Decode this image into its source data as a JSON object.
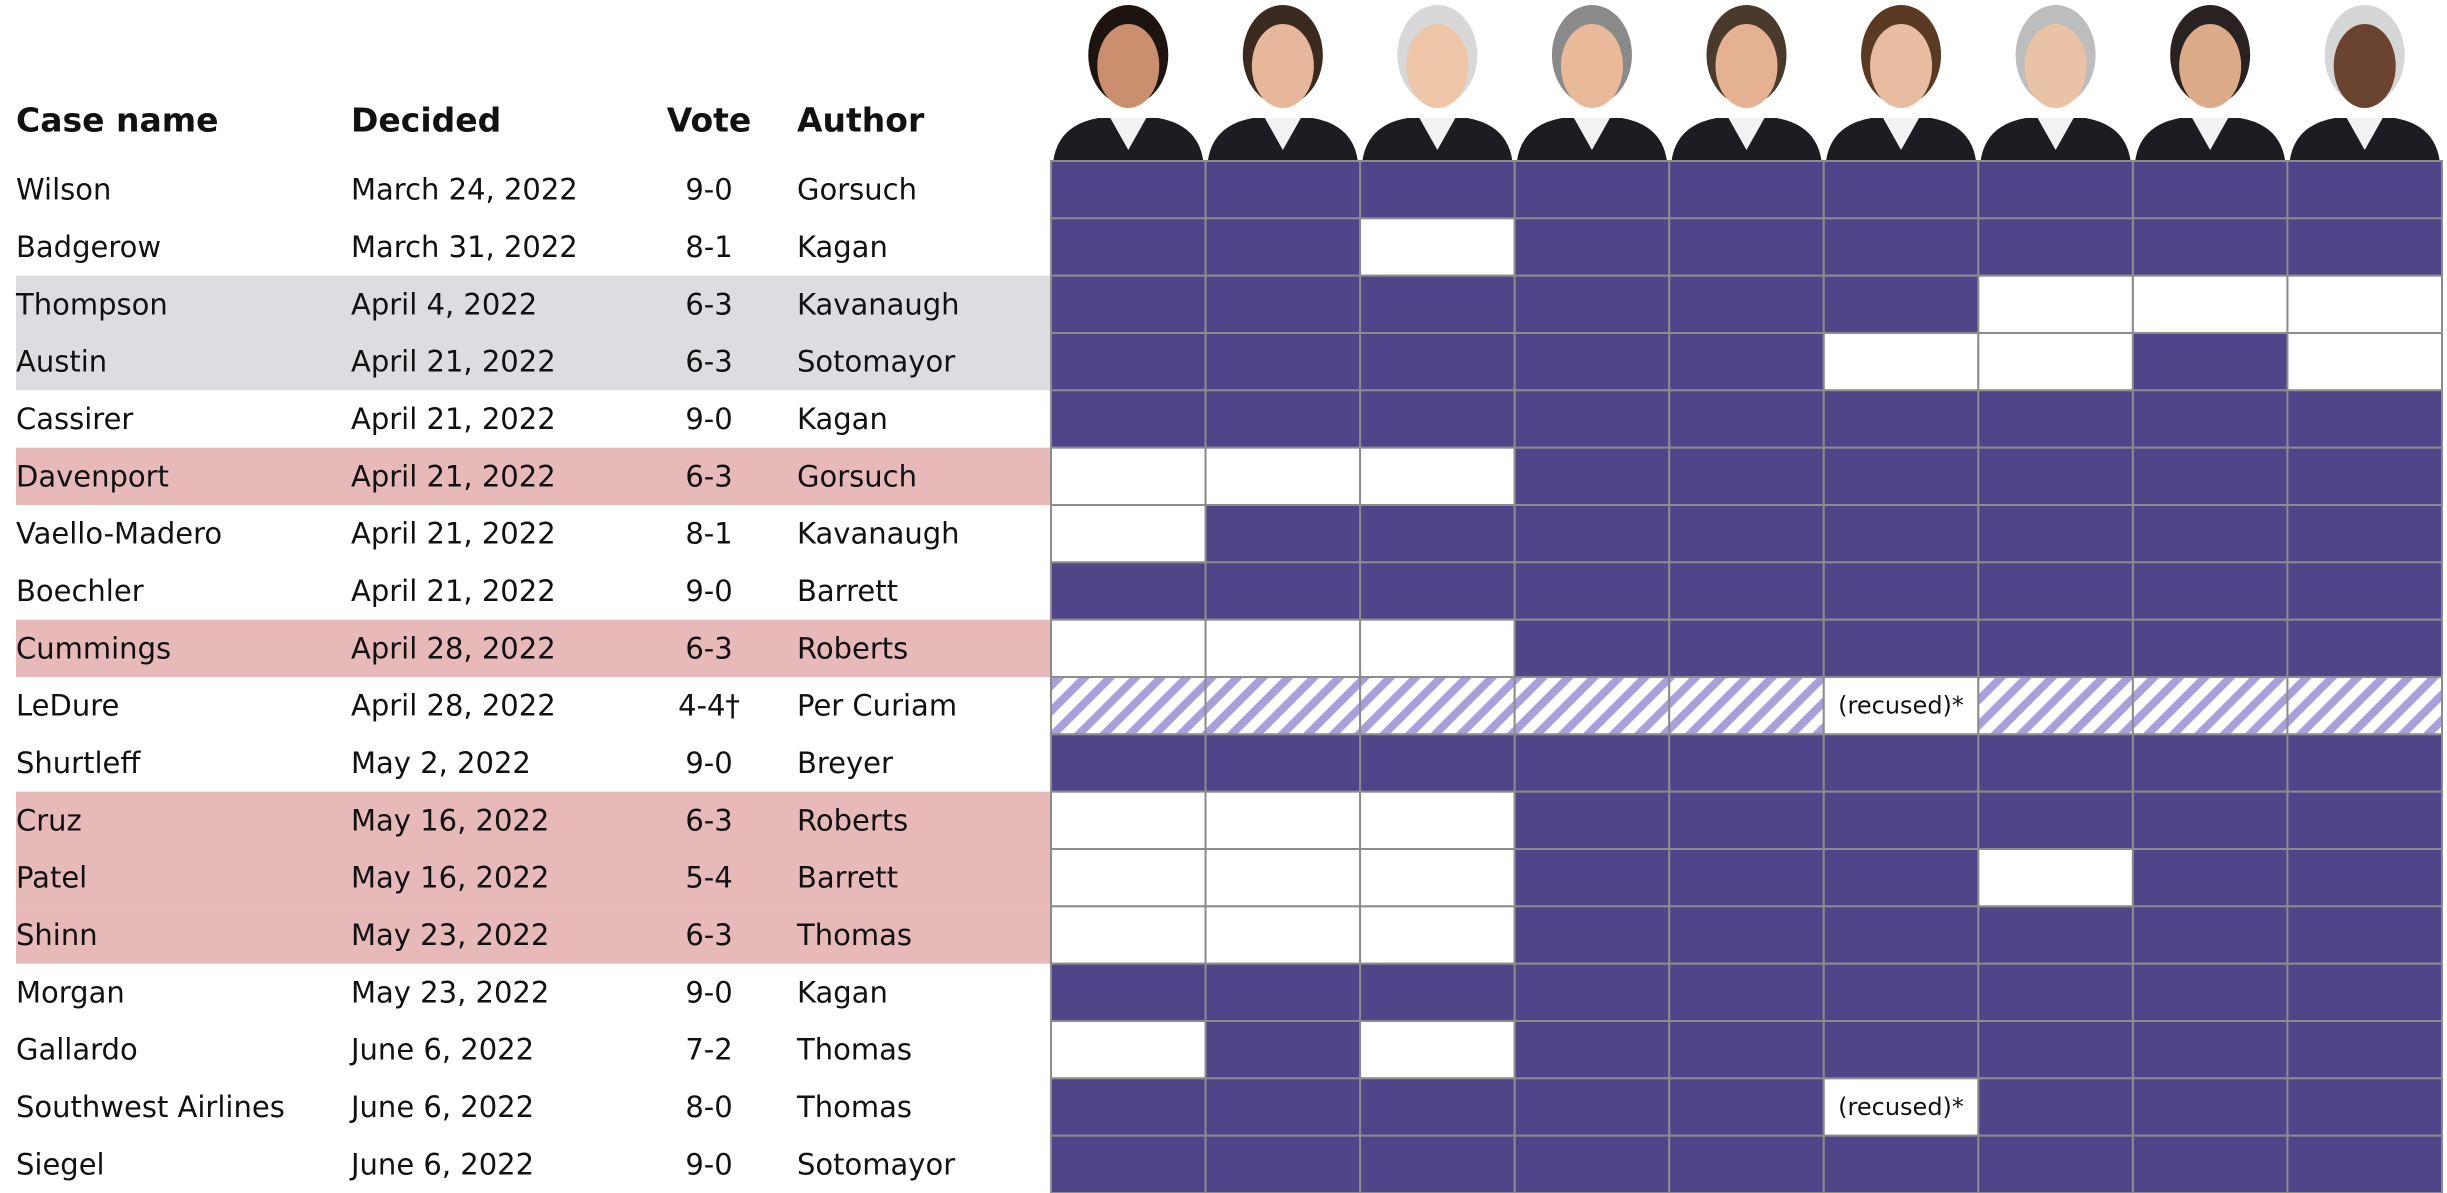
{
  "table": {
    "header": [
      "Case name",
      "Decided",
      "Vote",
      "Author"
    ],
    "colors": {
      "majority": "#504589",
      "dissent": "#ffffff",
      "hatch": "#a99fdc",
      "grid": "#8c8c8c"
    },
    "rows": [
      {
        "case": "Wilson",
        "decided": "March 24, 2022",
        "vote": "9-0",
        "author": "Gorsuch",
        "votes": [
          1,
          1,
          1,
          1,
          1,
          1,
          1,
          1,
          1
        ]
      },
      {
        "case": "Badgerow",
        "decided": "March 31, 2022",
        "vote": "8-1",
        "author": "Kagan",
        "votes": [
          1,
          1,
          0,
          1,
          1,
          1,
          1,
          1,
          1
        ]
      },
      {
        "case": "Thompson",
        "decided": "April 4, 2022",
        "vote": "6-3",
        "author": "Kavanaugh",
        "highlight": "#dcdde1",
        "votes": [
          1,
          1,
          1,
          1,
          1,
          1,
          0,
          0,
          0
        ]
      },
      {
        "case": "Austin",
        "decided": "April 21, 2022",
        "vote": "6-3",
        "author": "Sotomayor",
        "highlight": "#dcdde1",
        "votes": [
          1,
          1,
          1,
          1,
          1,
          0,
          0,
          1,
          0
        ]
      },
      {
        "case": "Cassirer",
        "decided": "April 21, 2022",
        "vote": "9-0",
        "author": "Kagan",
        "votes": [
          1,
          1,
          1,
          1,
          1,
          1,
          1,
          1,
          1
        ]
      },
      {
        "case": "Davenport",
        "decided": "April 21, 2022",
        "vote": "6-3",
        "author": "Gorsuch",
        "highlight": "#e8b9b9",
        "votes": [
          0,
          0,
          0,
          1,
          1,
          1,
          1,
          1,
          1
        ]
      },
      {
        "case": "Vaello-Madero",
        "decided": "April 21, 2022",
        "vote": "8-1",
        "author": "Kavanaugh",
        "votes": [
          0,
          1,
          1,
          1,
          1,
          1,
          1,
          1,
          1
        ]
      },
      {
        "case": "Boechler",
        "decided": "April 21, 2022",
        "vote": "9-0",
        "author": "Barrett",
        "votes": [
          1,
          1,
          1,
          1,
          1,
          1,
          1,
          1,
          1
        ]
      },
      {
        "case": "Cummings",
        "decided": "April 28, 2022",
        "vote": "6-3",
        "author": "Roberts",
        "highlight": "#e8b9b9",
        "votes": [
          0,
          0,
          0,
          1,
          1,
          1,
          1,
          1,
          1
        ]
      },
      {
        "case": "LeDure",
        "decided": "April 28, 2022",
        "vote": "4-4†",
        "author": "Per Curiam",
        "hatched": true,
        "votes": [
          1,
          1,
          1,
          1,
          1,
          "(recused)*",
          1,
          1,
          1
        ]
      },
      {
        "case": "Shurtleff",
        "decided": "May 2, 2022",
        "vote": "9-0",
        "author": "Breyer",
        "votes": [
          1,
          1,
          1,
          1,
          1,
          1,
          1,
          1,
          1
        ]
      },
      {
        "case": "Cruz",
        "decided": "May 16, 2022",
        "vote": "6-3",
        "author": "Roberts",
        "highlight": "#e8b9b9",
        "votes": [
          0,
          0,
          0,
          1,
          1,
          1,
          1,
          1,
          1
        ]
      },
      {
        "case": "Patel",
        "decided": "May 16, 2022",
        "vote": "5-4",
        "author": "Barrett",
        "highlight": "#e8b9b9",
        "votes": [
          0,
          0,
          0,
          1,
          1,
          1,
          0,
          1,
          1
        ]
      },
      {
        "case": "Shinn",
        "decided": "May 23, 2022",
        "vote": "6-3",
        "author": "Thomas",
        "highlight": "#e8b9b9",
        "votes": [
          0,
          0,
          0,
          1,
          1,
          1,
          1,
          1,
          1
        ]
      },
      {
        "case": "Morgan",
        "decided": "May 23, 2022",
        "vote": "9-0",
        "author": "Kagan",
        "votes": [
          1,
          1,
          1,
          1,
          1,
          1,
          1,
          1,
          1
        ]
      },
      {
        "case": "Gallardo",
        "decided": "June 6, 2022",
        "vote": "7-2",
        "author": "Thomas",
        "votes": [
          0,
          1,
          0,
          1,
          1,
          1,
          1,
          1,
          1
        ]
      },
      {
        "case": "Southwest Airlines",
        "decided": "June 6, 2022",
        "vote": "8-0",
        "author": "Thomas",
        "votes": [
          1,
          1,
          1,
          1,
          1,
          "(recused)*",
          1,
          1,
          1
        ]
      },
      {
        "case": "Siegel",
        "decided": "June 6, 2022",
        "vote": "9-0",
        "author": "Sotomayor",
        "votes": [
          1,
          1,
          1,
          1,
          1,
          1,
          1,
          1,
          1
        ]
      }
    ]
  }
}
